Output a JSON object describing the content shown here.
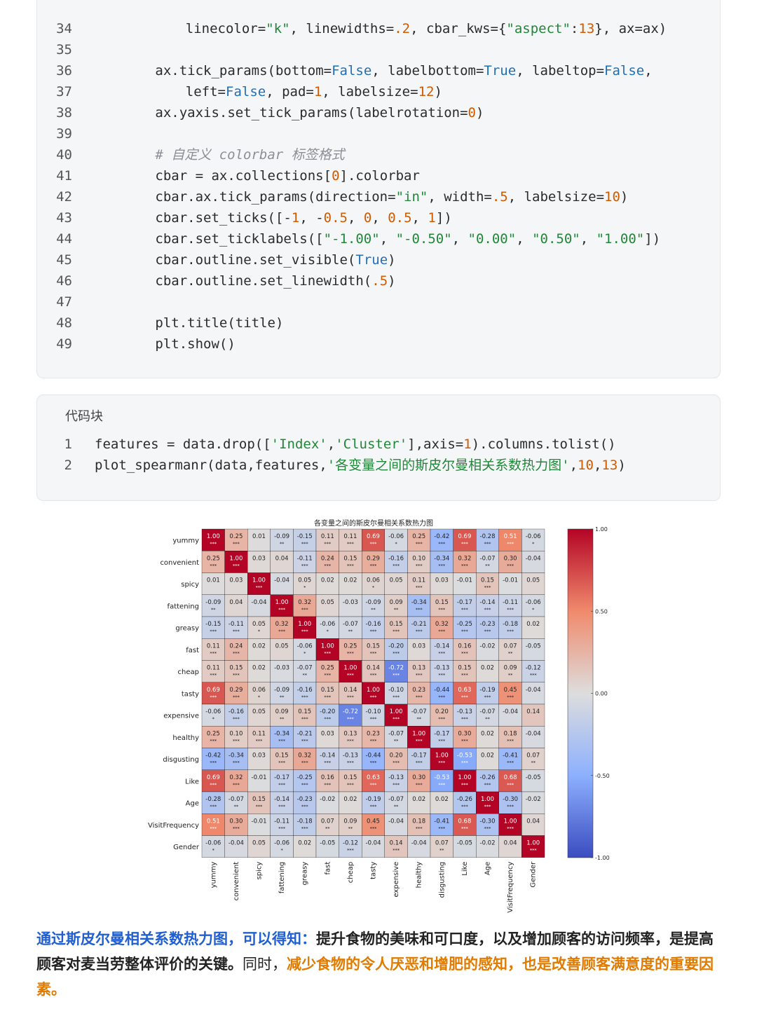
{
  "code_block_1": {
    "lines": [
      {
        "n": "34",
        "indent": 8,
        "tokens": [
          [
            "t",
            "linecolor="
          ],
          [
            "s",
            "\"k\""
          ],
          [
            "t",
            ", linewidths="
          ],
          [
            "n",
            ".2"
          ],
          [
            "t",
            ", cbar_kws={"
          ],
          [
            "s",
            "\"aspect\""
          ],
          [
            "t",
            ":"
          ],
          [
            "n",
            "13"
          ],
          [
            "t",
            "}, ax=ax)"
          ]
        ]
      },
      {
        "n": "35",
        "indent": 0,
        "tokens": []
      },
      {
        "n": "36",
        "indent": 4,
        "tokens": [
          [
            "t",
            "ax.tick_params(bottom="
          ],
          [
            "k",
            "False"
          ],
          [
            "t",
            ", labelbottom="
          ],
          [
            "k",
            "True"
          ],
          [
            "t",
            ", labeltop="
          ],
          [
            "k",
            "False"
          ],
          [
            "t",
            ","
          ]
        ]
      },
      {
        "n": "37",
        "indent": 8,
        "tokens": [
          [
            "t",
            "left="
          ],
          [
            "k",
            "False"
          ],
          [
            "t",
            ", pad="
          ],
          [
            "n",
            "1"
          ],
          [
            "t",
            ", labelsize="
          ],
          [
            "n",
            "12"
          ],
          [
            "t",
            ")"
          ]
        ]
      },
      {
        "n": "38",
        "indent": 4,
        "tokens": [
          [
            "t",
            "ax.yaxis.set_tick_params(labelrotation="
          ],
          [
            "n",
            "0"
          ],
          [
            "t",
            ")"
          ]
        ]
      },
      {
        "n": "39",
        "indent": 0,
        "tokens": []
      },
      {
        "n": "40",
        "indent": 4,
        "tokens": [
          [
            "c",
            "# 自定义 colorbar 标签格式"
          ]
        ]
      },
      {
        "n": "41",
        "indent": 4,
        "tokens": [
          [
            "t",
            "cbar = ax.collections["
          ],
          [
            "n",
            "0"
          ],
          [
            "t",
            "].colorbar"
          ]
        ]
      },
      {
        "n": "42",
        "indent": 4,
        "tokens": [
          [
            "t",
            "cbar.ax.tick_params(direction="
          ],
          [
            "s",
            "\"in\""
          ],
          [
            "t",
            ", width="
          ],
          [
            "n",
            ".5"
          ],
          [
            "t",
            ", labelsize="
          ],
          [
            "n",
            "10"
          ],
          [
            "t",
            ")"
          ]
        ]
      },
      {
        "n": "43",
        "indent": 4,
        "tokens": [
          [
            "t",
            "cbar.set_ticks([-"
          ],
          [
            "n",
            "1"
          ],
          [
            "t",
            ", -"
          ],
          [
            "n",
            "0.5"
          ],
          [
            "t",
            ", "
          ],
          [
            "n",
            "0"
          ],
          [
            "t",
            ", "
          ],
          [
            "n",
            "0.5"
          ],
          [
            "t",
            ", "
          ],
          [
            "n",
            "1"
          ],
          [
            "t",
            "])"
          ]
        ]
      },
      {
        "n": "44",
        "indent": 4,
        "tokens": [
          [
            "t",
            "cbar.set_ticklabels(["
          ],
          [
            "s",
            "\"-1.00\""
          ],
          [
            "t",
            ", "
          ],
          [
            "s",
            "\"-0.50\""
          ],
          [
            "t",
            ", "
          ],
          [
            "s",
            "\"0.00\""
          ],
          [
            "t",
            ", "
          ],
          [
            "s",
            "\"0.50\""
          ],
          [
            "t",
            ", "
          ],
          [
            "s",
            "\"1.00\""
          ],
          [
            "t",
            "])"
          ]
        ]
      },
      {
        "n": "45",
        "indent": 4,
        "tokens": [
          [
            "t",
            "cbar.outline.set_visible("
          ],
          [
            "k",
            "True"
          ],
          [
            "t",
            ")"
          ]
        ]
      },
      {
        "n": "46",
        "indent": 4,
        "tokens": [
          [
            "t",
            "cbar.outline.set_linewidth("
          ],
          [
            "n",
            ".5"
          ],
          [
            "t",
            ")"
          ]
        ]
      },
      {
        "n": "47",
        "indent": 0,
        "tokens": []
      },
      {
        "n": "48",
        "indent": 4,
        "tokens": [
          [
            "t",
            "plt.title(title)"
          ]
        ]
      },
      {
        "n": "49",
        "indent": 4,
        "tokens": [
          [
            "t",
            "plt.show()"
          ]
        ]
      }
    ]
  },
  "code_block_2": {
    "header": "代码块",
    "lines": [
      {
        "n": "1",
        "indent": 0,
        "tokens": [
          [
            "t",
            "features = data.drop(["
          ],
          [
            "s",
            "'Index'"
          ],
          [
            "t",
            ","
          ],
          [
            "s",
            "'Cluster'"
          ],
          [
            "t",
            "],axis="
          ],
          [
            "n",
            "1"
          ],
          [
            "t",
            ").columns.tolist()"
          ]
        ]
      },
      {
        "n": "2",
        "indent": 0,
        "tokens": [
          [
            "t",
            "plot_spearmanr(data,features,"
          ],
          [
            "s",
            "'各变量之间的斯皮尔曼相关系数热力图'"
          ],
          [
            "t",
            ","
          ],
          [
            "n",
            "10"
          ],
          [
            "t",
            ","
          ],
          [
            "n",
            "13"
          ],
          [
            "t",
            ")"
          ]
        ]
      }
    ]
  },
  "chart_data": {
    "type": "heatmap",
    "title": "各变量之间的斯皮尔曼相关系数热力图",
    "variables": [
      "yummy",
      "convenient",
      "spicy",
      "fattening",
      "greasy",
      "fast",
      "cheap",
      "tasty",
      "expensive",
      "healthy",
      "disgusting",
      "Like",
      "Age",
      "VisitFrequency",
      "Gender"
    ],
    "values": [
      [
        1.0,
        0.25,
        0.01,
        -0.09,
        -0.15,
        0.11,
        0.11,
        0.69,
        -0.06,
        0.25,
        -0.42,
        0.69,
        -0.28,
        0.51,
        -0.06
      ],
      [
        0.25,
        1.0,
        0.03,
        0.04,
        -0.11,
        0.24,
        0.15,
        0.29,
        -0.16,
        0.1,
        -0.34,
        0.32,
        -0.07,
        0.3,
        -0.04
      ],
      [
        0.01,
        0.03,
        1.0,
        -0.04,
        0.05,
        0.02,
        0.02,
        0.06,
        0.05,
        0.11,
        0.03,
        -0.01,
        0.15,
        -0.01,
        0.05
      ],
      [
        -0.09,
        0.04,
        -0.04,
        1.0,
        0.32,
        0.05,
        -0.03,
        -0.09,
        0.09,
        -0.34,
        0.15,
        -0.17,
        -0.14,
        -0.11,
        -0.06
      ],
      [
        -0.15,
        -0.11,
        0.05,
        0.32,
        1.0,
        -0.06,
        -0.07,
        -0.16,
        0.15,
        -0.21,
        0.32,
        -0.25,
        -0.23,
        -0.18,
        0.02
      ],
      [
        0.11,
        0.24,
        0.02,
        0.05,
        -0.06,
        1.0,
        0.25,
        0.15,
        -0.2,
        0.03,
        -0.14,
        0.16,
        -0.02,
        0.07,
        -0.05
      ],
      [
        0.11,
        0.15,
        0.02,
        -0.03,
        -0.07,
        0.25,
        1.0,
        0.14,
        -0.72,
        0.13,
        -0.13,
        0.15,
        0.02,
        0.09,
        -0.12
      ],
      [
        0.69,
        0.29,
        0.06,
        -0.09,
        -0.16,
        0.15,
        0.14,
        1.0,
        -0.1,
        0.23,
        -0.44,
        0.63,
        -0.19,
        0.45,
        -0.04
      ],
      [
        -0.06,
        -0.16,
        0.05,
        0.09,
        0.15,
        -0.2,
        -0.72,
        -0.1,
        1.0,
        -0.07,
        0.2,
        -0.13,
        -0.07,
        -0.04,
        0.14
      ],
      [
        0.25,
        0.1,
        0.11,
        -0.34,
        -0.21,
        0.03,
        0.13,
        0.23,
        -0.07,
        1.0,
        -0.17,
        0.3,
        0.02,
        0.18,
        -0.04
      ],
      [
        -0.42,
        -0.34,
        0.03,
        0.15,
        0.32,
        -0.14,
        -0.13,
        -0.44,
        0.2,
        -0.17,
        1.0,
        -0.53,
        0.02,
        -0.41,
        0.07
      ],
      [
        0.69,
        0.32,
        -0.01,
        -0.17,
        -0.25,
        0.16,
        0.15,
        0.63,
        -0.13,
        0.3,
        -0.53,
        1.0,
        -0.26,
        0.68,
        -0.05
      ],
      [
        -0.28,
        -0.07,
        0.15,
        -0.14,
        -0.23,
        -0.02,
        0.02,
        -0.19,
        -0.07,
        0.02,
        0.02,
        -0.26,
        1.0,
        -0.3,
        -0.02
      ],
      [
        0.51,
        0.3,
        -0.01,
        -0.11,
        -0.18,
        0.07,
        0.09,
        0.45,
        -0.04,
        0.18,
        -0.41,
        0.68,
        -0.3,
        1.0,
        0.04
      ],
      [
        -0.06,
        -0.04,
        0.05,
        -0.06,
        0.02,
        -0.05,
        -0.12,
        -0.04,
        0.14,
        -0.04,
        0.07,
        -0.05,
        -0.02,
        0.04,
        1.0
      ]
    ],
    "stars": [
      [
        "***",
        "***",
        "",
        "**",
        "***",
        "***",
        "***",
        "***",
        "*",
        "***",
        "***",
        "***",
        "***",
        "***",
        "*"
      ],
      [
        "***",
        "***",
        "",
        "",
        "***",
        "***",
        "***",
        "***",
        "***",
        "***",
        "***",
        "***",
        "**",
        "***",
        ""
      ],
      [
        "",
        "",
        "***",
        "",
        "*",
        "",
        "",
        "*",
        "",
        "***",
        "",
        "",
        "***",
        "",
        ""
      ],
      [
        "**",
        "",
        "",
        "***",
        "***",
        "",
        "",
        "**",
        "**",
        "***",
        "***",
        "***",
        "***",
        "***",
        "*"
      ],
      [
        "***",
        "***",
        "*",
        "***",
        "***",
        "*",
        "**",
        "***",
        "***",
        "***",
        "***",
        "***",
        "***",
        "***",
        ""
      ],
      [
        "***",
        "***",
        "",
        "",
        "*",
        "***",
        "***",
        "***",
        "***",
        "",
        "***",
        "***",
        "",
        "**",
        ""
      ],
      [
        "***",
        "***",
        "",
        "",
        "**",
        "***",
        "***",
        "***",
        "***",
        "***",
        "***",
        "***",
        "",
        "**",
        "***"
      ],
      [
        "***",
        "***",
        "*",
        "**",
        "***",
        "***",
        "***",
        "***",
        "***",
        "***",
        "***",
        "***",
        "***",
        "***",
        ""
      ],
      [
        "*",
        "***",
        "",
        "**",
        "***",
        "***",
        "***",
        "***",
        "***",
        "**",
        "***",
        "***",
        "**",
        "",
        ""
      ],
      [
        "***",
        "***",
        "***",
        "***",
        "***",
        "",
        "***",
        "***",
        "**",
        "***",
        "***",
        "***",
        "",
        "***",
        ""
      ],
      [
        "***",
        "***",
        "",
        "***",
        "***",
        "***",
        "***",
        "***",
        "***",
        "***",
        "***",
        "***",
        "",
        "***",
        "**"
      ],
      [
        "***",
        "***",
        "",
        "***",
        "***",
        "***",
        "***",
        "***",
        "***",
        "***",
        "***",
        "***",
        "***",
        "***",
        ""
      ],
      [
        "***",
        "**",
        "***",
        "***",
        "***",
        "",
        "",
        "***",
        "**",
        "",
        "",
        "***",
        "***",
        "***",
        ""
      ],
      [
        "***",
        "***",
        "",
        "***",
        "***",
        "**",
        "**",
        "***",
        "",
        "***",
        "***",
        "***",
        "***",
        "***",
        ""
      ],
      [
        "*",
        "",
        "",
        "*",
        "",
        "",
        "***",
        "",
        "***",
        "",
        "**",
        "",
        "",
        "",
        "***"
      ]
    ],
    "colorbar": {
      "min": -1,
      "max": 1,
      "ticks": [
        1.0,
        0.5,
        0.0,
        -0.5,
        -1.0
      ],
      "tick_labels": [
        "1.00",
        "0.50",
        "0.00",
        "-0.50",
        "-1.00"
      ]
    },
    "colormap": "coolwarm",
    "colors": {
      "neg": "#3b4cc0",
      "mid": "#dddddd",
      "pos": "#b40426"
    }
  },
  "summary": {
    "part1": "通过斯皮尔曼相关系数热力图，可以得知：",
    "part2": "提升食物的美味和可口度，以及增加顾客的访问频率，是提高顾客对麦当劳整体评价的关键。",
    "part3": "同时，",
    "part4": "减少食物的令人厌恶和增肥的感知，也是改善顾客满意度的重要因素。"
  }
}
